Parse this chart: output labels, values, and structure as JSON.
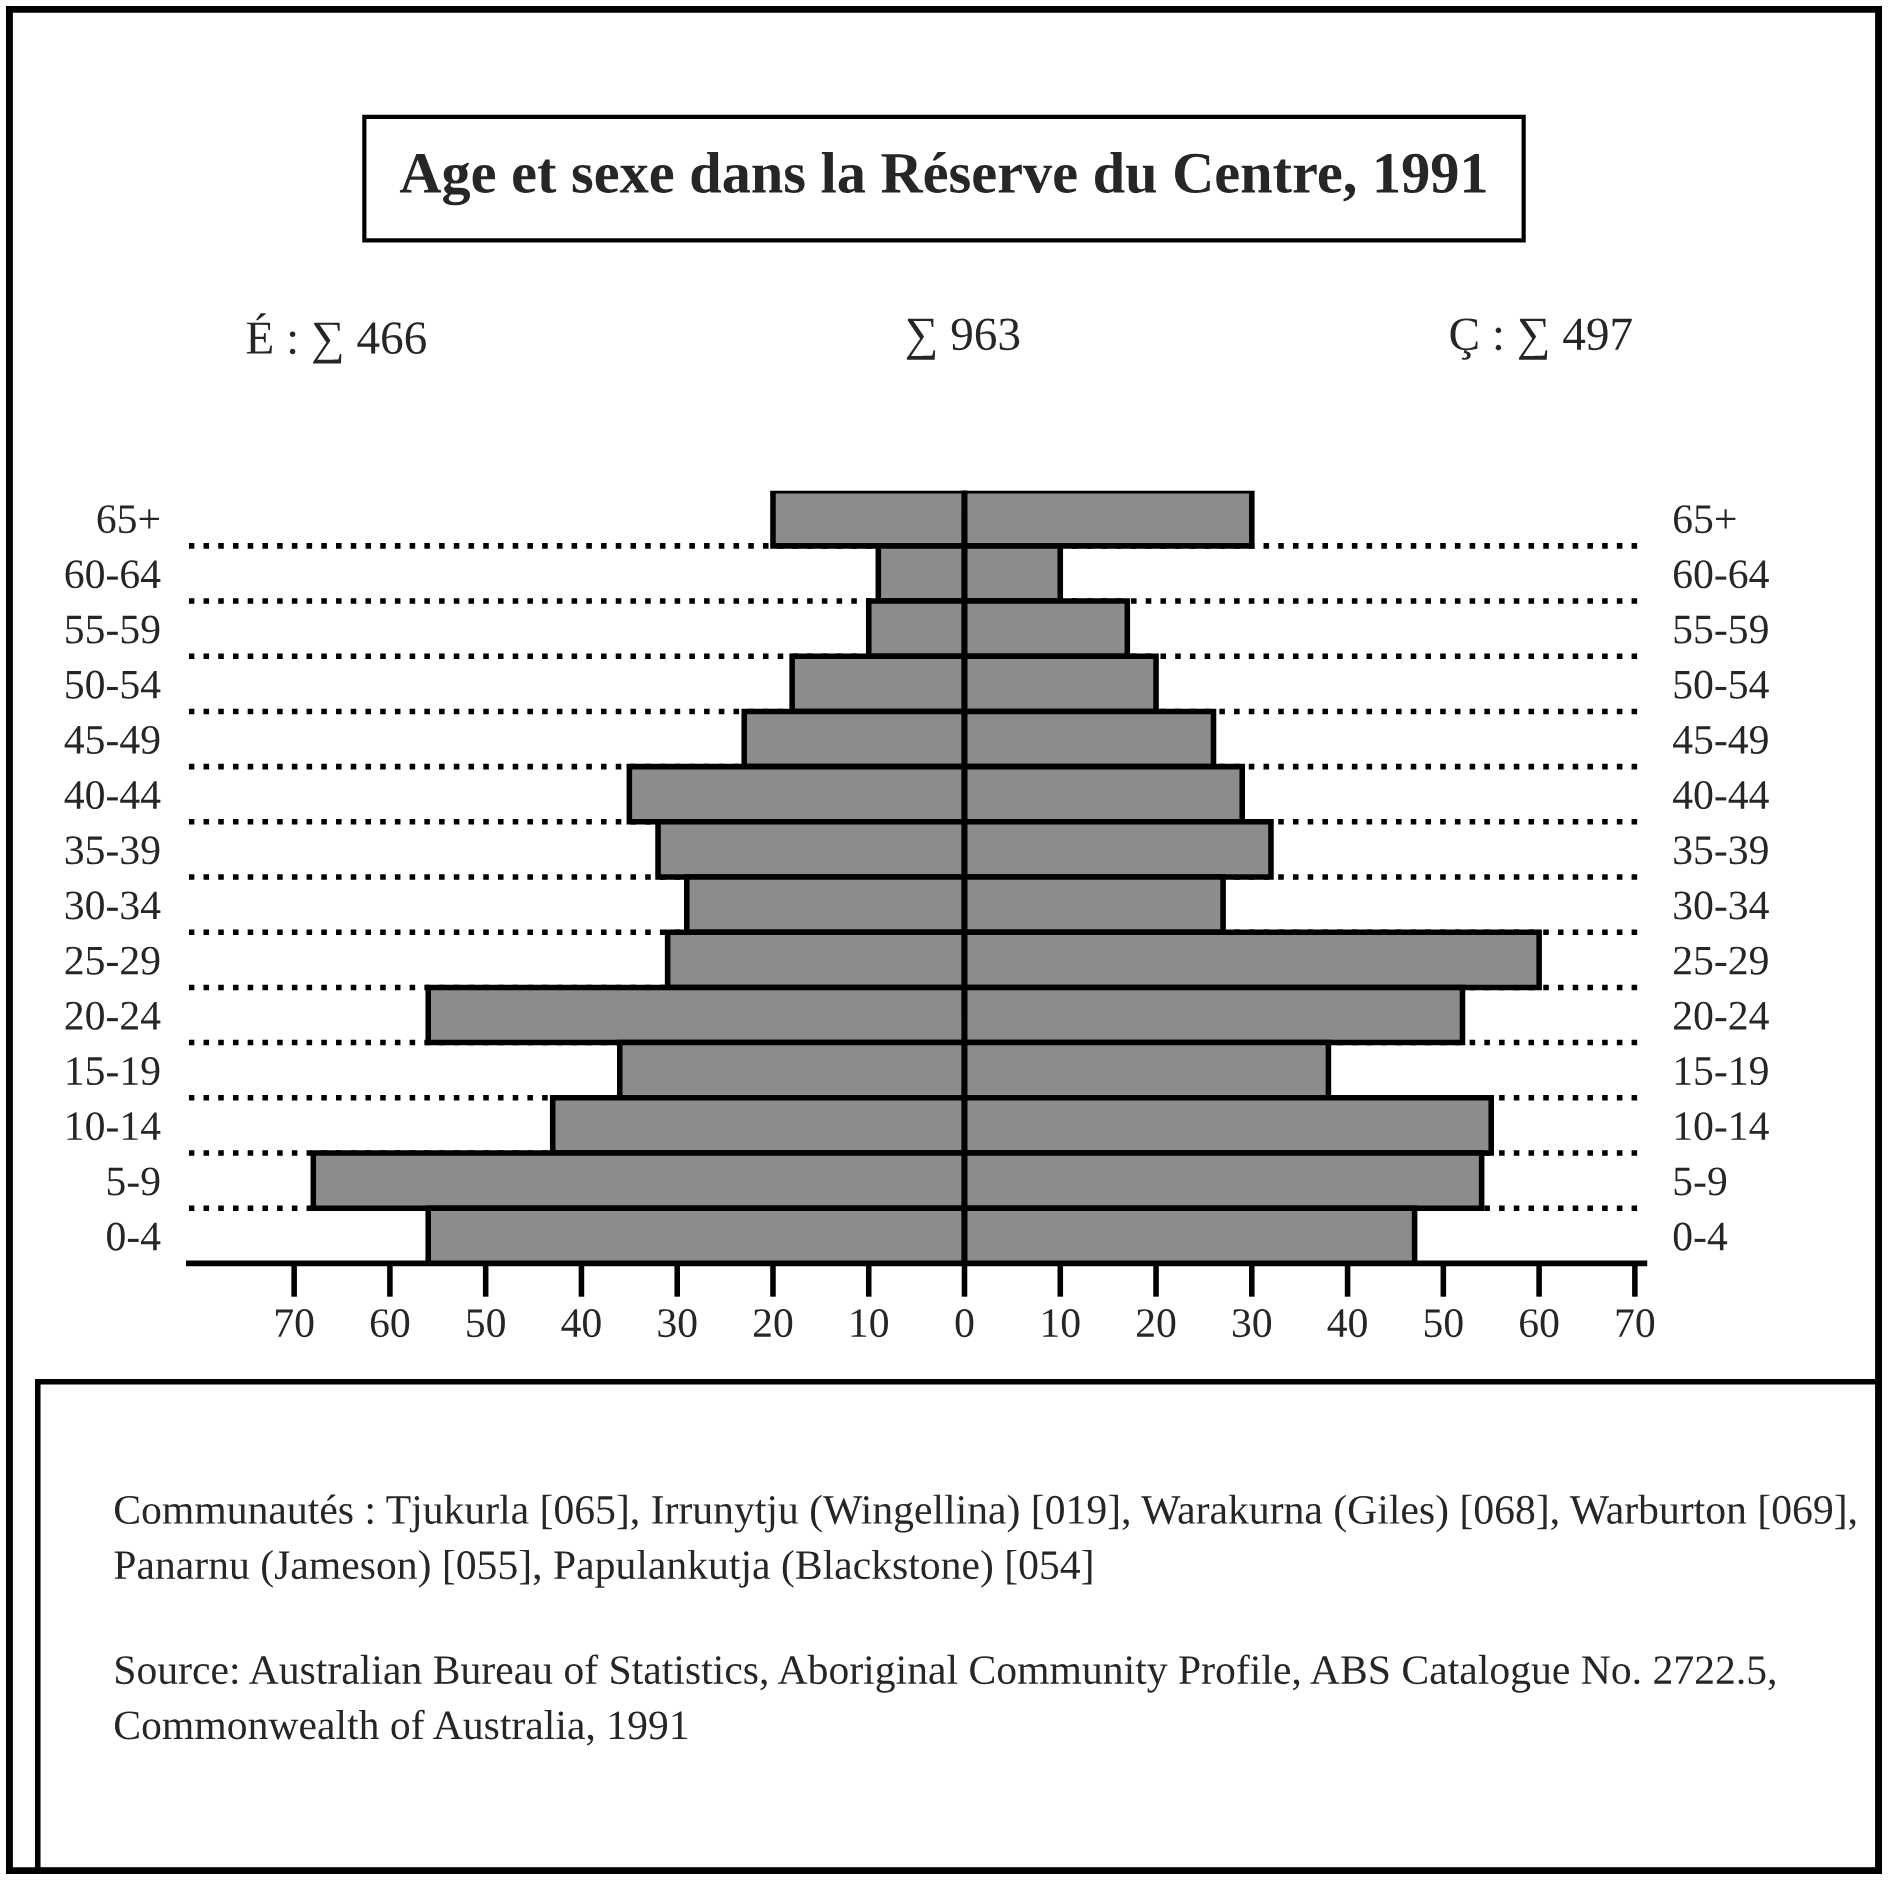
{
  "chart_data": {
    "type": "bar",
    "orientation": "horizontal",
    "stacked": true,
    "title": "Age et sexe dans la Réserve du Centre, 1991",
    "categories": [
      "65+",
      "60-64",
      "55-59",
      "50-54",
      "45-49",
      "40-44",
      "35-39",
      "30-34",
      "25-29",
      "20-24",
      "15-19",
      "10-14",
      "5-9",
      "0-4"
    ],
    "series": [
      {
        "color": "#8c8c8c",
        "values": [
          -20,
          -9,
          -10,
          -18,
          -23,
          -35,
          -32,
          -29,
          -31,
          -56,
          -36,
          -43,
          -68,
          -56
        ]
      },
      {
        "color": "#8c8c8c",
        "values": [
          30,
          10,
          17,
          20,
          26,
          29,
          32,
          27,
          60,
          52,
          38,
          55,
          54,
          47
        ]
      }
    ],
    "xlim": [
      -81,
      71
    ],
    "xticks": [
      {
        "value": -70,
        "label": "70"
      },
      {
        "value": -60,
        "label": "60"
      },
      {
        "value": -50,
        "label": "50"
      },
      {
        "value": -40,
        "label": "40"
      },
      {
        "value": -30,
        "label": "30"
      },
      {
        "value": -20,
        "label": "20"
      },
      {
        "value": -10,
        "label": "10"
      },
      0,
      10,
      20,
      30,
      40,
      50,
      60,
      70
    ],
    "ref_lines": [
      {
        "axis": "x",
        "value": 0,
        "color": "#000000"
      }
    ],
    "grid": "y",
    "line_style": "dotted",
    "annotations": [
      "É : ∑ 466",
      "∑ 963",
      "Ç : ∑ 497",
      "Communautés : Tjukurla [065], Irrunytju (Wingellina) [019], Warakurna (Giles) [068], Warburton [069], Panarnu (Jameson) [055], Papulankutja (Blackstone) [054]",
      "Source: Australian Bureau of Statistics, Aboriginal Community Profile, ABS Catalogue No. 2722.5, Commonwealth of Australia, 1991"
    ]
  }
}
